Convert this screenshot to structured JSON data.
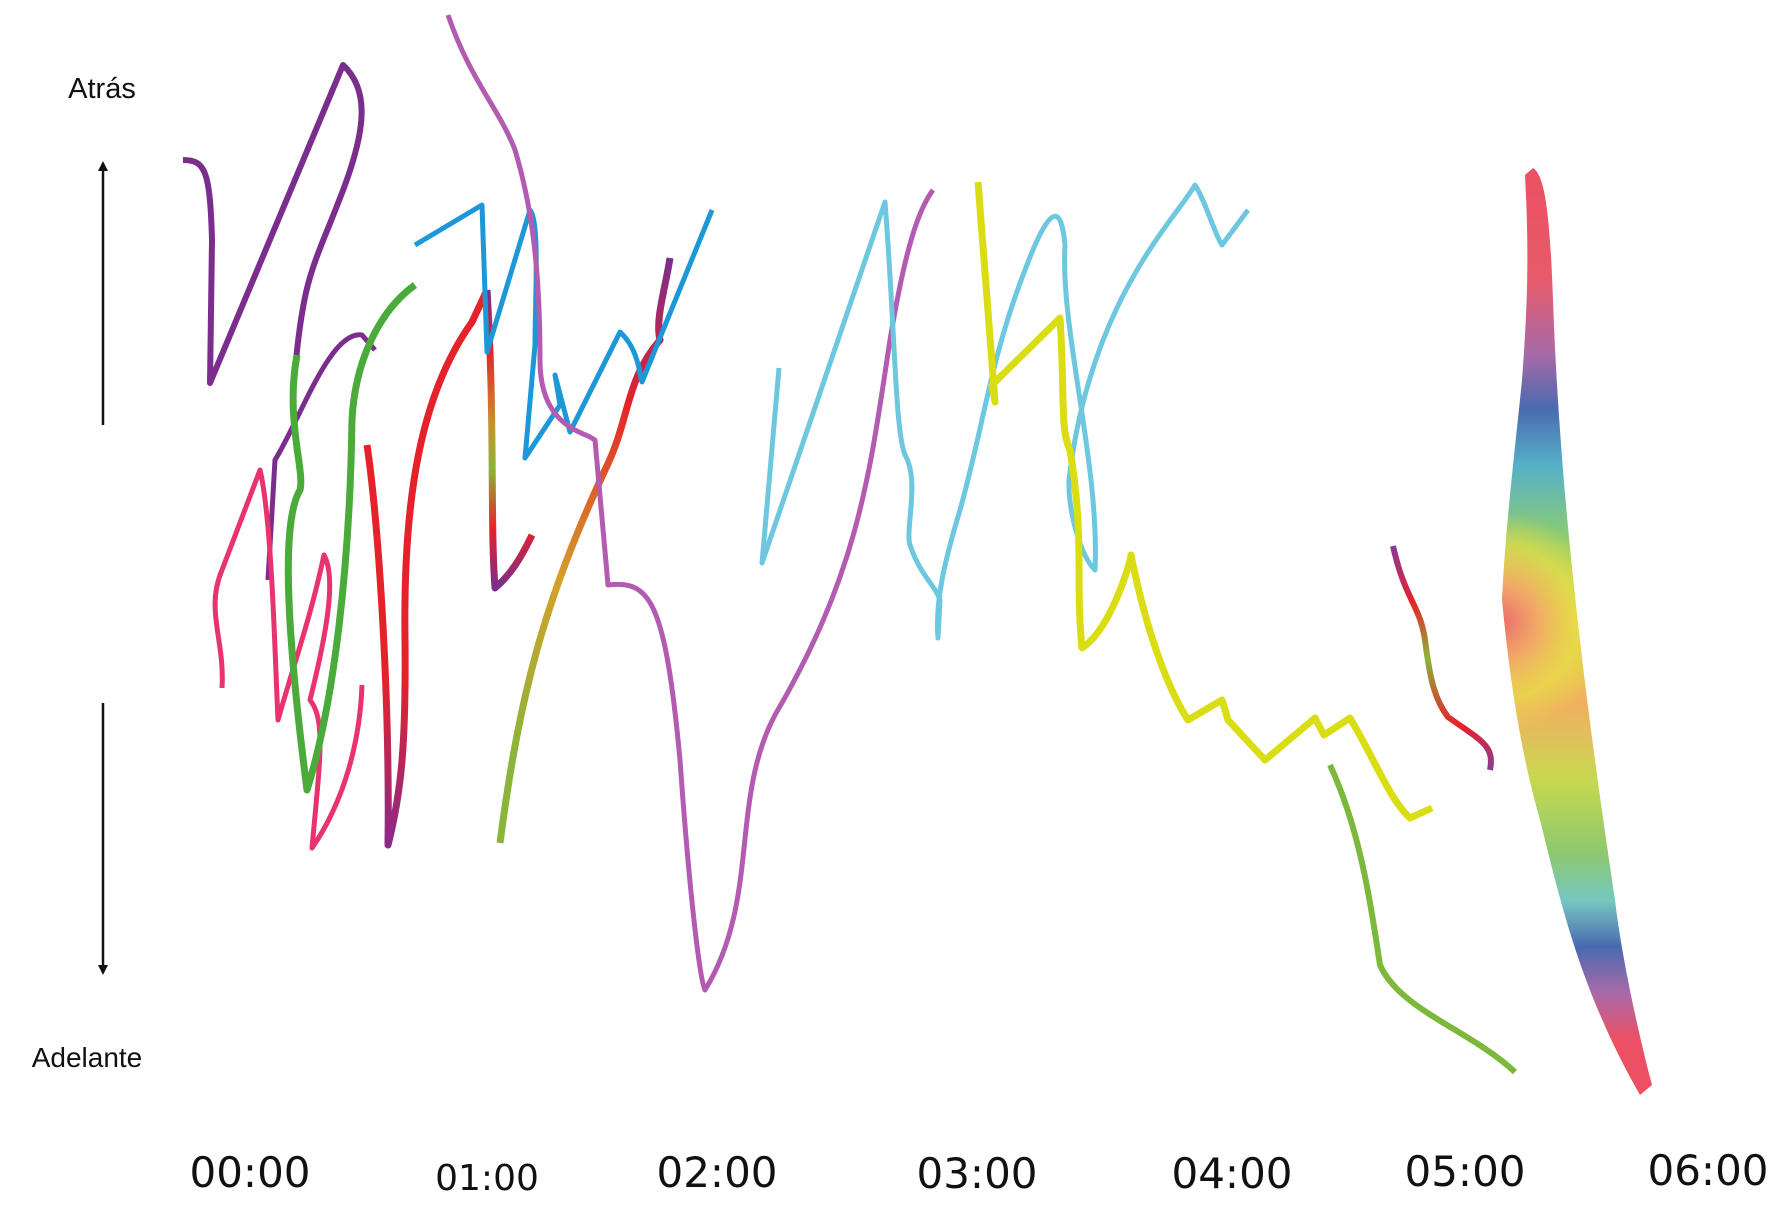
{
  "axis": {
    "top_label": "Atrás",
    "bottom_label": "Adelante"
  },
  "time_ticks": [
    "00:00",
    "01:00",
    "02:00",
    "03:00",
    "04:00",
    "05:00",
    "06:00"
  ],
  "palette": {
    "purple": "#7b2d8e",
    "orchid": "#b35bb0",
    "pink": "#e8336e",
    "green": "#4aaa3a",
    "olive_green": "#7cb83a",
    "red": "#e5222a",
    "blue": "#1c98d8",
    "light_blue": "#6cc7df",
    "yellow": "#d9dd12",
    "coral": "#ec5064"
  }
}
